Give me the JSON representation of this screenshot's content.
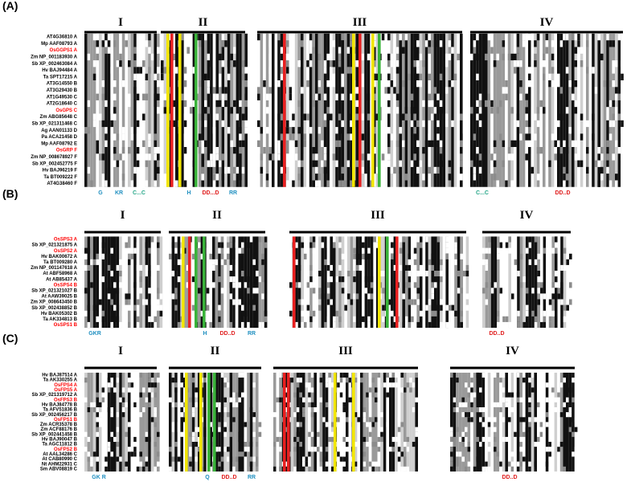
{
  "panels": [
    {
      "label": "(A)",
      "regions": [
        "I",
        "II",
        "III",
        "IV"
      ],
      "sequences": [
        {
          "name": "AT4G36810 A",
          "color": "black"
        },
        {
          "name": "Mp AAF08793 A",
          "color": "black"
        },
        {
          "name": "OsGGPS1 A",
          "color": "red"
        },
        {
          "name": "Zm NP_001183930 A",
          "color": "black"
        },
        {
          "name": "Sb XP_002463084 A",
          "color": "black"
        },
        {
          "name": "Hv BAJ94484 A",
          "color": "black"
        },
        {
          "name": "Ta SPT17215 A",
          "color": "black"
        },
        {
          "name": "AT3G14550 B",
          "color": "black"
        },
        {
          "name": "AT3G29430 B",
          "color": "black"
        },
        {
          "name": "AT1G49530 C",
          "color": "black"
        },
        {
          "name": "AT2G18640 C",
          "color": "black"
        },
        {
          "name": "OsGPS C",
          "color": "red"
        },
        {
          "name": "Zm ABG85648 C",
          "color": "black"
        },
        {
          "name": "Sb XP_021311468 C",
          "color": "black"
        },
        {
          "name": "Ag AAN01133 D",
          "color": "black"
        },
        {
          "name": "Pa ACA21458 D",
          "color": "black"
        },
        {
          "name": "Mp AAF08792 E",
          "color": "black"
        },
        {
          "name": "OsGRP F",
          "color": "red"
        },
        {
          "name": "Zm NP_008678927 F",
          "color": "black"
        },
        {
          "name": "Sb XP_002452775 F",
          "color": "black"
        },
        {
          "name": "Hv BAJ96219 F",
          "color": "black"
        },
        {
          "name": "Ta BT009222 F",
          "color": "black"
        },
        {
          "name": "AT4G38460 F",
          "color": "black"
        }
      ],
      "motifs": [
        {
          "text": "G",
          "color": "#1f8fc0"
        },
        {
          "text": "KR",
          "color": "#1f8fc0"
        },
        {
          "text": "C...C",
          "color": "#2aa88a"
        },
        {
          "text": "H",
          "color": "#1f8fc0"
        },
        {
          "text": "DD...D",
          "color": "#e02020"
        },
        {
          "text": "RR",
          "color": "#1f8fc0"
        },
        {
          "text": "C...C",
          "color": "#2aa88a"
        },
        {
          "text": "DD..D",
          "color": "#e02020"
        }
      ]
    },
    {
      "label": "(B)",
      "regions": [
        "I",
        "II",
        "III",
        "IV"
      ],
      "sequences": [
        {
          "name": "OsSPS3 A",
          "color": "red"
        },
        {
          "name": "Sb XP_021321875 A",
          "color": "black"
        },
        {
          "name": "OsSPS2 A",
          "color": "red"
        },
        {
          "name": "Hv BAK00672 A",
          "color": "black"
        },
        {
          "name": "Ta BT009280 A",
          "color": "black"
        },
        {
          "name": "Zm NP_001147618 A",
          "color": "black"
        },
        {
          "name": "At ABF58968 A",
          "color": "black"
        },
        {
          "name": "At AB85437 A",
          "color": "black"
        },
        {
          "name": "OsSPS4 B",
          "color": "red"
        },
        {
          "name": "Sb XP_021321027 B",
          "color": "black"
        },
        {
          "name": "At AAW39025 B",
          "color": "black"
        },
        {
          "name": "Zm XP_008643450 B",
          "color": "black"
        },
        {
          "name": "Sb XP_002438852 B",
          "color": "black"
        },
        {
          "name": "Hv BAK05302 B",
          "color": "black"
        },
        {
          "name": "Ta AK334813 B",
          "color": "black"
        },
        {
          "name": "OsSPS1 B",
          "color": "red"
        }
      ],
      "motifs": [
        {
          "text": "GKR",
          "color": "#1f8fc0"
        },
        {
          "text": "H",
          "color": "#1f8fc0"
        },
        {
          "text": "DD..D",
          "color": "#e02020"
        },
        {
          "text": "RR",
          "color": "#1f8fc0"
        },
        {
          "text": "DD..D",
          "color": "#e02020"
        }
      ]
    },
    {
      "label": "(C)",
      "regions": [
        "I",
        "II",
        "III",
        "IV"
      ],
      "sequences": [
        {
          "name": "Hv BAJ87514 A",
          "color": "black"
        },
        {
          "name": "Ta AK330255 A",
          "color": "black"
        },
        {
          "name": "OsFPS4 A",
          "color": "red"
        },
        {
          "name": "OsFPS5 A",
          "color": "red"
        },
        {
          "name": "Sb XP_021319712 A",
          "color": "black"
        },
        {
          "name": "OsFPS3 B",
          "color": "red"
        },
        {
          "name": "Hv BAJ84778 B",
          "color": "black"
        },
        {
          "name": "Ta AFV51836 B",
          "color": "black"
        },
        {
          "name": "Sb XP_002456217 B",
          "color": "black"
        },
        {
          "name": "OsFPS1 B",
          "color": "red"
        },
        {
          "name": "Zm ACR35378 B",
          "color": "black"
        },
        {
          "name": "Zm ACF88176 B",
          "color": "black"
        },
        {
          "name": "Sb XP_002441458 B",
          "color": "black"
        },
        {
          "name": "Hv BAJ90047 B",
          "color": "black"
        },
        {
          "name": "Ta AGC11812 B",
          "color": "black"
        },
        {
          "name": "OsFPS2 B",
          "color": "red"
        },
        {
          "name": "At AAL34286 C",
          "color": "black"
        },
        {
          "name": "At CAB80990 C",
          "color": "black"
        },
        {
          "name": "Nt AHM22931 C",
          "color": "black"
        },
        {
          "name": "Sm ABV08819 C",
          "color": "black"
        }
      ],
      "motifs": [
        {
          "text": "GK R",
          "color": "#1f8fc0"
        },
        {
          "text": "Q",
          "color": "#1f8fc0"
        },
        {
          "text": "DD..D",
          "color": "#e02020"
        },
        {
          "text": "RR",
          "color": "#1f8fc0"
        },
        {
          "text": "DD..D",
          "color": "#e02020"
        }
      ]
    }
  ]
}
